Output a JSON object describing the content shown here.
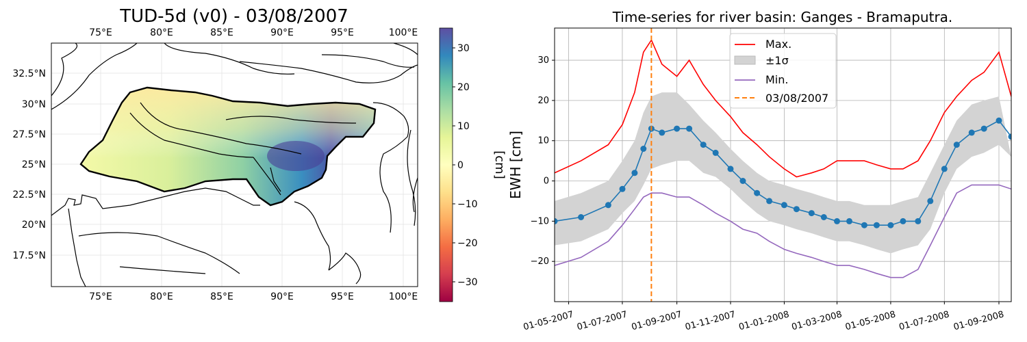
{
  "map_panel": {
    "title": "TUD-5d (v0) - 03/08/2007",
    "lon_ticks": [
      "75°E",
      "80°E",
      "85°E",
      "90°E",
      "95°E",
      "100°E"
    ],
    "lat_ticks": [
      "32.5°N",
      "30°N",
      "27.5°N",
      "25°N",
      "22.5°N",
      "20°N",
      "17.5°N"
    ],
    "colorbar": {
      "label": "[cm]",
      "ticks": [
        "30",
        "20",
        "10",
        "0",
        "−10",
        "−20",
        "−30"
      ],
      "range": [
        -35,
        35
      ],
      "colormap": "Spectral"
    }
  },
  "chart_data": {
    "type": "line",
    "title": "Time-series for river basin: Ganges - Bramaputra.",
    "xlabel": "",
    "ylabel": "EWH [cm]",
    "x_ticks": [
      "01-05-2007",
      "01-07-2007",
      "01-09-2007",
      "01-11-2007",
      "01-01-2008",
      "01-03-2008",
      "01-05-2008",
      "01-07-2008",
      "01-09-2008"
    ],
    "x_range": [
      "2007-04-15",
      "2008-09-15"
    ],
    "ylim": [
      -30,
      38
    ],
    "y_ticks": [
      30,
      20,
      10,
      0,
      -10,
      -20
    ],
    "grid": true,
    "legend_position": "top-center",
    "legend": [
      "Max.",
      "±1σ",
      "Min.",
      "03/08/2007"
    ],
    "marker_date": "2007-08-03",
    "dates": [
      "2007-04-15",
      "2007-05-15",
      "2007-06-15",
      "2007-07-01",
      "2007-07-15",
      "2007-07-25",
      "2007-08-03",
      "2007-08-15",
      "2007-09-01",
      "2007-09-15",
      "2007-10-01",
      "2007-10-15",
      "2007-11-01",
      "2007-11-15",
      "2007-12-01",
      "2007-12-15",
      "2008-01-01",
      "2008-01-15",
      "2008-02-01",
      "2008-02-15",
      "2008-03-01",
      "2008-03-15",
      "2008-04-01",
      "2008-04-15",
      "2008-05-01",
      "2008-05-15",
      "2008-06-01",
      "2008-06-15",
      "2008-07-01",
      "2008-07-15",
      "2008-08-01",
      "2008-08-15",
      "2008-09-01",
      "2008-09-15"
    ],
    "series": [
      {
        "name": "Max.",
        "color": "#ff0000",
        "values": [
          2,
          5,
          9,
          14,
          22,
          32,
          35,
          29,
          26,
          30,
          24,
          20,
          16,
          12,
          9,
          6,
          3,
          1,
          2,
          3,
          5,
          5,
          5,
          4,
          3,
          3,
          5,
          10,
          17,
          21,
          25,
          27,
          32,
          21
        ]
      },
      {
        "name": "Min.",
        "color": "#9467bd",
        "values": [
          -21,
          -19,
          -15,
          -11,
          -7,
          -4,
          -3,
          -3,
          -4,
          -4,
          -6,
          -8,
          -10,
          -12,
          -13,
          -15,
          -17,
          -18,
          -19,
          -20,
          -21,
          -21,
          -22,
          -23,
          -24,
          -24,
          -22,
          -16,
          -9,
          -3,
          -1,
          -1,
          -1,
          -2
        ]
      },
      {
        "name": "mean",
        "color": "#1f77b4",
        "values": [
          -10,
          -9,
          -6,
          -2,
          2,
          8,
          13,
          12,
          13,
          13,
          9,
          7,
          3,
          0,
          -3,
          -5,
          -6,
          -7,
          -8,
          -9,
          -10,
          -10,
          -11,
          -11,
          -11,
          -10,
          -10,
          -5,
          3,
          9,
          12,
          13,
          15,
          11
        ]
      },
      {
        "name": "±1σ",
        "color": "#d3d3d3",
        "upper": [
          -5,
          -3,
          0,
          5,
          10,
          17,
          21,
          22,
          22,
          19,
          15,
          12,
          8,
          5,
          2,
          0,
          -1,
          -2,
          -3,
          -4,
          -5,
          -5,
          -6,
          -6,
          -6,
          -5,
          -4,
          2,
          9,
          15,
          19,
          20,
          21,
          6
        ],
        "lower": [
          -16,
          -15,
          -12,
          -8,
          -5,
          -1,
          3,
          4,
          5,
          5,
          2,
          1,
          -2,
          -5,
          -8,
          -10,
          -11,
          -12,
          -13,
          -14,
          -15,
          -15,
          -16,
          -17,
          -18,
          -17,
          -16,
          -12,
          -3,
          3,
          6,
          7,
          9,
          6
        ]
      }
    ]
  }
}
